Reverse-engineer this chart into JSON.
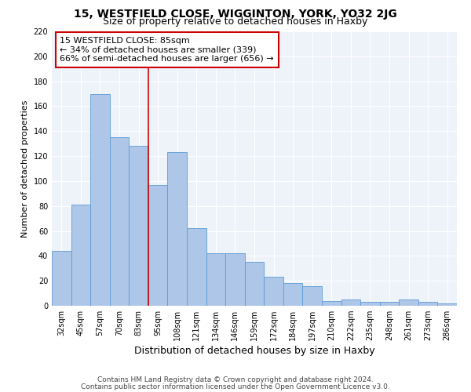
{
  "title": "15, WESTFIELD CLOSE, WIGGINTON, YORK, YO32 2JG",
  "subtitle": "Size of property relative to detached houses in Haxby",
  "xlabel": "Distribution of detached houses by size in Haxby",
  "ylabel": "Number of detached properties",
  "categories": [
    "32sqm",
    "45sqm",
    "57sqm",
    "70sqm",
    "83sqm",
    "95sqm",
    "108sqm",
    "121sqm",
    "134sqm",
    "146sqm",
    "159sqm",
    "172sqm",
    "184sqm",
    "197sqm",
    "210sqm",
    "222sqm",
    "235sqm",
    "248sqm",
    "261sqm",
    "273sqm",
    "286sqm"
  ],
  "values": [
    44,
    81,
    170,
    135,
    128,
    97,
    123,
    62,
    42,
    42,
    35,
    23,
    18,
    16,
    4,
    5,
    3,
    3,
    5,
    3,
    2
  ],
  "bar_color": "#aec6e8",
  "bar_edge_color": "#5b9bd5",
  "vline_index": 4,
  "vline_color": "#cc0000",
  "annotation_line1": "15 WESTFIELD CLOSE: 85sqm",
  "annotation_line2": "← 34% of detached houses are smaller (339)",
  "annotation_line3": "66% of semi-detached houses are larger (656) →",
  "annotation_box_color": "#ffffff",
  "annotation_box_edge_color": "#cc0000",
  "ylim": [
    0,
    220
  ],
  "yticks": [
    0,
    20,
    40,
    60,
    80,
    100,
    120,
    140,
    160,
    180,
    200,
    220
  ],
  "background_color": "#eef2f9",
  "footer_line1": "Contains HM Land Registry data © Crown copyright and database right 2024.",
  "footer_line2": "Contains public sector information licensed under the Open Government Licence v3.0.",
  "title_fontsize": 10,
  "subtitle_fontsize": 9,
  "xlabel_fontsize": 9,
  "ylabel_fontsize": 8,
  "tick_fontsize": 7,
  "annotation_fontsize": 8,
  "footer_fontsize": 6.5
}
